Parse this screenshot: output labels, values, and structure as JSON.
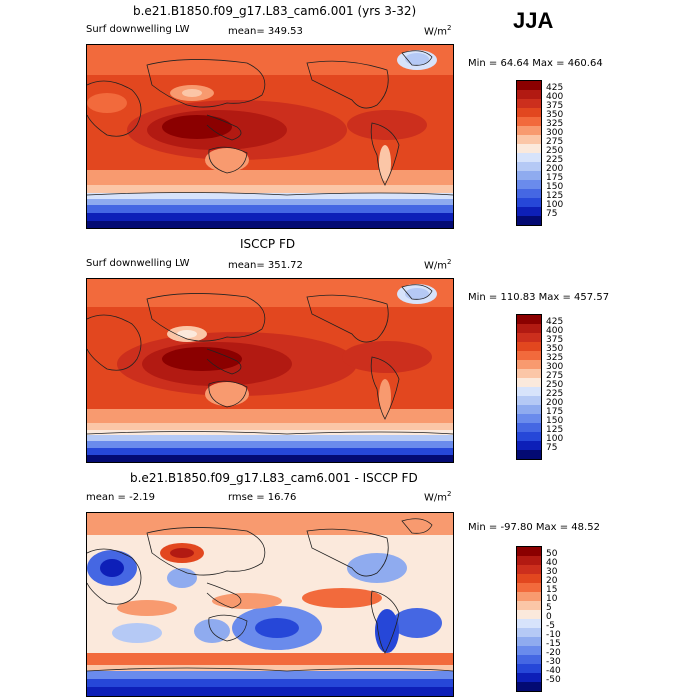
{
  "season": "JJA",
  "panels": [
    {
      "title": "b.e21.B1850.f09_g17.L83_cam6.001 (yrs 3-32)",
      "left_label": "Surf downwelling LW",
      "center_label": "mean= 349.53",
      "units": "W/m",
      "units_sup": "2",
      "minmax": "Min =  64.64 Max = 460.64",
      "levels": [
        "425",
        "400",
        "375",
        "350",
        "325",
        "300",
        "275",
        "250",
        "225",
        "200",
        "175",
        "150",
        "125",
        "100",
        "75"
      ],
      "colors": [
        "#8b0000",
        "#b21a12",
        "#cc2f1d",
        "#e2471f",
        "#f26a3c",
        "#f89a6f",
        "#fbc6a7",
        "#fbe9dc",
        "#d7e3fb",
        "#b5c9f5",
        "#8fabef",
        "#6a8bec",
        "#4567e3",
        "#2647d8",
        "#0d1fb8",
        "#030a73"
      ]
    },
    {
      "title": "ISCCP FD",
      "left_label": "Surf downwelling LW",
      "center_label": "mean= 351.72",
      "units": "W/m",
      "units_sup": "2",
      "minmax": "Min = 110.83 Max = 457.57",
      "levels": [
        "425",
        "400",
        "375",
        "350",
        "325",
        "300",
        "275",
        "250",
        "225",
        "200",
        "175",
        "150",
        "125",
        "100",
        "75"
      ],
      "colors": [
        "#8b0000",
        "#b21a12",
        "#cc2f1d",
        "#e2471f",
        "#f26a3c",
        "#f89a6f",
        "#fbc6a7",
        "#fbe9dc",
        "#d7e3fb",
        "#b5c9f5",
        "#8fabef",
        "#6a8bec",
        "#4567e3",
        "#2647d8",
        "#0d1fb8",
        "#030a73"
      ]
    },
    {
      "title": "b.e21.B1850.f09_g17.L83_cam6.001 - ISCCP FD",
      "left_label": "mean =  -2.19",
      "center_label": "rmse =  16.76",
      "units": "W/m",
      "units_sup": "2",
      "minmax": "Min = -97.80 Max =  48.52",
      "levels": [
        "50",
        "40",
        "30",
        "20",
        "15",
        "10",
        "5",
        "0",
        "-5",
        "-10",
        "-15",
        "-20",
        "-30",
        "-40",
        "-50"
      ],
      "colors": [
        "#8b0000",
        "#b21a12",
        "#cc2f1d",
        "#e2471f",
        "#f26a3c",
        "#f89a6f",
        "#fbc6a7",
        "#fbe9dc",
        "#d7e3fb",
        "#b5c9f5",
        "#8fabef",
        "#6a8bec",
        "#4567e3",
        "#2647d8",
        "#0d1fb8",
        "#030a73"
      ]
    }
  ]
}
